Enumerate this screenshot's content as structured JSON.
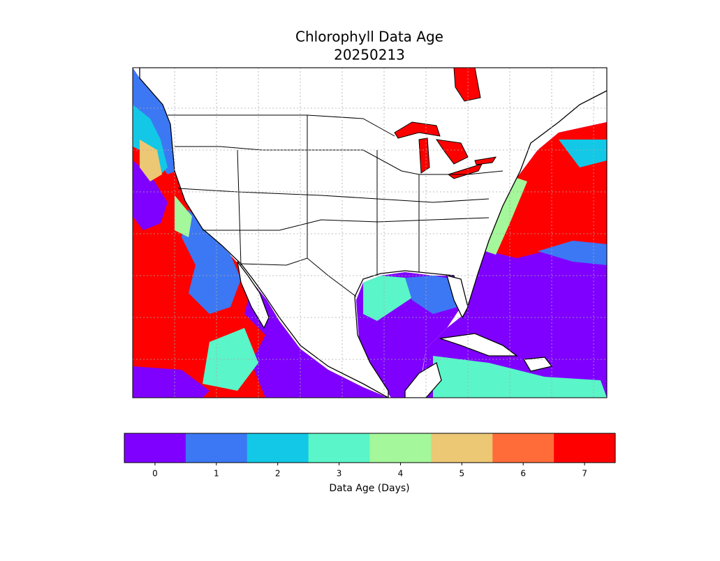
{
  "title": "Chlorophyll Data Age",
  "date": "20250213",
  "colorbar": {
    "label": "Data Age (Days)",
    "lim": [
      -0.5,
      7.5
    ],
    "ticks": [
      0,
      1,
      2,
      3,
      4,
      5,
      6,
      7
    ],
    "colors": [
      "#7f00ff",
      "#3c78f4",
      "#12c8e6",
      "#5af5c8",
      "#a4f79a",
      "#ecc774",
      "#ff6c39",
      "#ff0000"
    ]
  }
}
